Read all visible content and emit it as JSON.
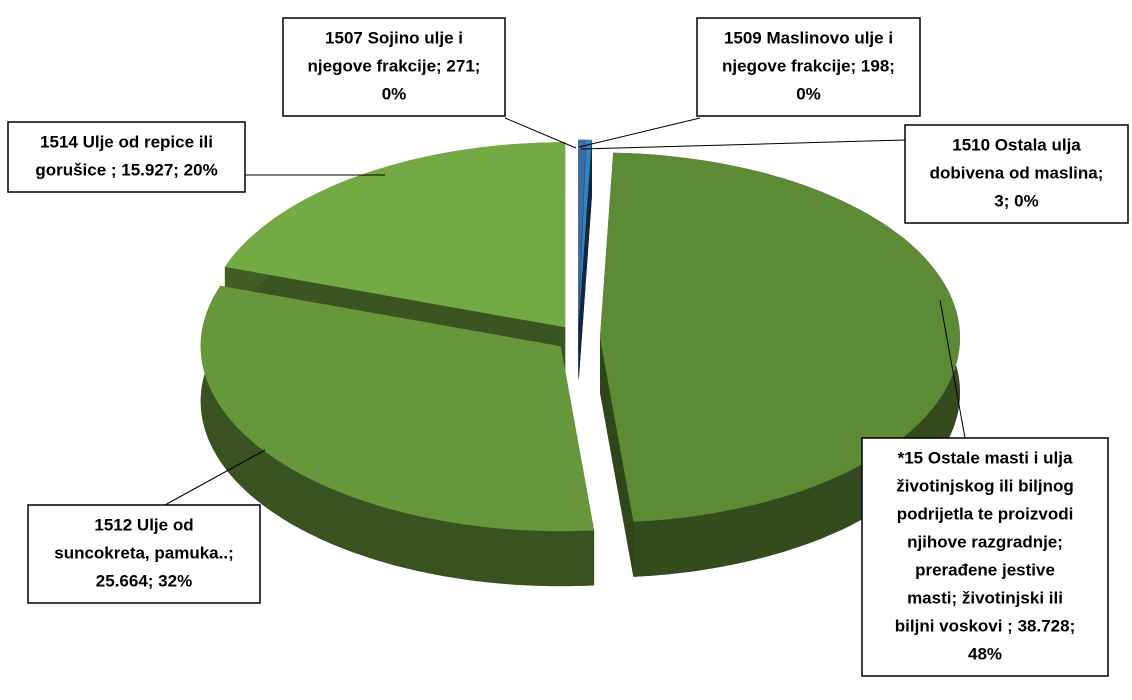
{
  "chart_data": {
    "type": "pie3d",
    "labels": [
      [
        "1507 Sojino ulje i",
        "njegove frakcije; 271;",
        "0%"
      ],
      [
        "1509 Maslinovo ulje i",
        "njegove frakcije; 198;",
        "0%"
      ],
      [
        "1510 Ostala ulja",
        "dobivena od maslina;",
        "3; 0%"
      ],
      [
        "*15 Ostale masti i ulja",
        "životinjskog ili biljnog",
        "podrijetla te proizvodi",
        "njihove razgradnje;",
        "prerađene jestive",
        "masti; životinjski ili",
        "biljni voskovi  ; 38.728;",
        "48%"
      ],
      [
        "1512 Ulje od",
        "suncokreta, pamuka..;",
        "25.664; 32%"
      ],
      [
        "1514 Ulje od repice ili",
        "gorušice ; 15.927; 20%"
      ]
    ],
    "values": [
      271,
      198,
      3,
      38728,
      25664,
      15927
    ],
    "colors": [
      "#3d6aa8",
      "#2e86c1",
      "#1f4e79",
      "#5d8a34",
      "#66973a",
      "#74aa43"
    ]
  }
}
